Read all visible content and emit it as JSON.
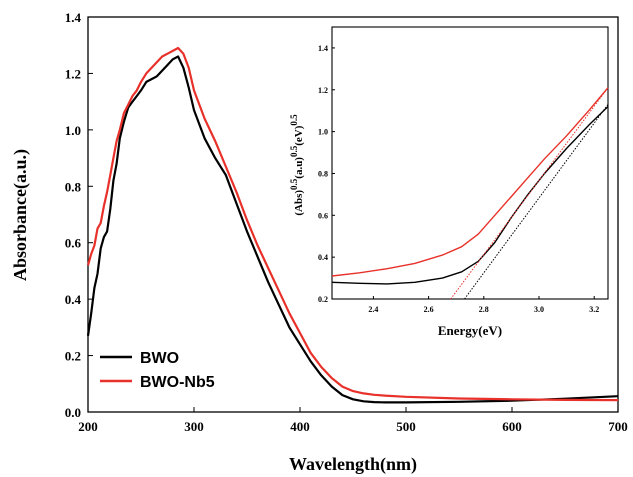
{
  "chart_data": [
    {
      "type": "line",
      "title": "",
      "xlabel": "Wavelength(nm)",
      "ylabel": "Absorbance(a.u.)",
      "xlim": [
        200,
        700
      ],
      "ylim": [
        0.0,
        1.4
      ],
      "xticks": [
        "200",
        "300",
        "400",
        "500",
        "600",
        "700"
      ],
      "yticks": [
        "0.0",
        "0.2",
        "0.4",
        "0.6",
        "0.8",
        "1.0",
        "1.2",
        "1.4"
      ],
      "grid": false,
      "legend_position": "bottom-left",
      "series": [
        {
          "name": "BWO",
          "color": "#000000",
          "x": [
            200,
            203,
            206,
            209,
            212,
            215,
            218,
            221,
            224,
            227,
            230,
            234,
            238,
            242,
            246,
            250,
            255,
            260,
            265,
            270,
            275,
            280,
            285,
            290,
            295,
            300,
            310,
            320,
            330,
            340,
            350,
            360,
            370,
            380,
            390,
            400,
            410,
            420,
            430,
            440,
            450,
            460,
            470,
            480,
            500,
            550,
            600,
            650,
            700
          ],
          "y": [
            0.27,
            0.35,
            0.44,
            0.49,
            0.58,
            0.62,
            0.64,
            0.72,
            0.82,
            0.88,
            0.97,
            1.03,
            1.08,
            1.1,
            1.12,
            1.14,
            1.17,
            1.18,
            1.19,
            1.21,
            1.23,
            1.25,
            1.26,
            1.22,
            1.15,
            1.07,
            0.97,
            0.9,
            0.84,
            0.74,
            0.64,
            0.55,
            0.46,
            0.38,
            0.3,
            0.24,
            0.18,
            0.13,
            0.09,
            0.06,
            0.045,
            0.038,
            0.035,
            0.034,
            0.034,
            0.036,
            0.04,
            0.047,
            0.056
          ]
        },
        {
          "name": "BWO-Nb5",
          "color": "#e8312a",
          "x": [
            200,
            203,
            206,
            209,
            212,
            215,
            218,
            221,
            224,
            227,
            230,
            234,
            238,
            242,
            246,
            250,
            255,
            260,
            265,
            270,
            275,
            280,
            285,
            290,
            295,
            300,
            310,
            320,
            330,
            340,
            350,
            360,
            370,
            380,
            390,
            400,
            410,
            420,
            430,
            440,
            450,
            460,
            470,
            480,
            500,
            550,
            600,
            650,
            700
          ],
          "y": [
            0.52,
            0.56,
            0.59,
            0.65,
            0.67,
            0.73,
            0.78,
            0.84,
            0.9,
            0.96,
            1.0,
            1.06,
            1.09,
            1.12,
            1.14,
            1.17,
            1.2,
            1.22,
            1.24,
            1.26,
            1.27,
            1.28,
            1.29,
            1.27,
            1.22,
            1.14,
            1.04,
            0.96,
            0.87,
            0.78,
            0.68,
            0.59,
            0.51,
            0.43,
            0.35,
            0.28,
            0.21,
            0.16,
            0.12,
            0.09,
            0.074,
            0.066,
            0.061,
            0.058,
            0.054,
            0.048,
            0.045,
            0.043,
            0.042
          ]
        }
      ]
    },
    {
      "type": "line",
      "title": "",
      "xlabel": "Energy(eV)",
      "ylabel_parts": [
        "(Abs)",
        "0.5",
        "(a.u)",
        "0.5",
        "(eV)",
        "0.5"
      ],
      "xlim": [
        2.25,
        3.25
      ],
      "ylim": [
        0.2,
        1.5
      ],
      "xticks": [
        "2.4",
        "2.6",
        "2.8",
        "3.0",
        "3.2"
      ],
      "yticks": [
        "0.2",
        "0.4",
        "0.6",
        "0.8",
        "1.0",
        "1.2",
        "1.4"
      ],
      "grid": false,
      "series": [
        {
          "color": "#000000",
          "x": [
            2.25,
            2.35,
            2.45,
            2.55,
            2.65,
            2.72,
            2.78,
            2.84,
            2.9,
            2.96,
            3.02,
            3.1,
            3.18,
            3.25
          ],
          "y": [
            0.28,
            0.275,
            0.272,
            0.28,
            0.3,
            0.33,
            0.38,
            0.47,
            0.59,
            0.7,
            0.8,
            0.92,
            1.03,
            1.12
          ]
        },
        {
          "color": "#e8312a",
          "x": [
            2.25,
            2.35,
            2.45,
            2.55,
            2.65,
            2.72,
            2.78,
            2.84,
            2.9,
            2.96,
            3.02,
            3.1,
            3.18,
            3.25
          ],
          "y": [
            0.31,
            0.325,
            0.345,
            0.37,
            0.41,
            0.45,
            0.51,
            0.6,
            0.69,
            0.78,
            0.87,
            0.98,
            1.1,
            1.21
          ]
        },
        {
          "color": "#000000",
          "style": "dotted",
          "x": [
            2.73,
            3.25
          ],
          "y": [
            0.2,
            1.13
          ]
        },
        {
          "color": "#e8312a",
          "style": "dotted",
          "x": [
            2.68,
            3.25
          ],
          "y": [
            0.2,
            1.21
          ]
        }
      ]
    }
  ]
}
